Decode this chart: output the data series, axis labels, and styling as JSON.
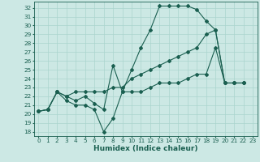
{
  "xlabel": "Humidex (Indice chaleur)",
  "bg_color": "#cce8e4",
  "line_color": "#1a5f50",
  "grid_color": "#aad4ce",
  "xlim": [
    -0.5,
    23.5
  ],
  "ylim": [
    17.5,
    32.7
  ],
  "xticks": [
    0,
    1,
    2,
    3,
    4,
    5,
    6,
    7,
    8,
    9,
    10,
    11,
    12,
    13,
    14,
    15,
    16,
    17,
    18,
    19,
    20,
    21,
    22,
    23
  ],
  "yticks": [
    18,
    19,
    20,
    21,
    22,
    23,
    24,
    25,
    26,
    27,
    28,
    29,
    30,
    31,
    32
  ],
  "series": [
    [
      20.3,
      20.5,
      22.5,
      21.5,
      21.0,
      21.0,
      20.5,
      18.0,
      19.5,
      22.5,
      25.0,
      27.5,
      29.5,
      32.2,
      32.2,
      32.2,
      32.2,
      31.8,
      30.5,
      29.5,
      23.5,
      23.5,
      23.5
    ],
    [
      20.3,
      20.5,
      22.5,
      22.0,
      21.5,
      22.0,
      21.2,
      20.5,
      25.5,
      22.5,
      22.5,
      22.5,
      23.0,
      23.5,
      23.5,
      23.5,
      24.0,
      24.5,
      24.5,
      27.5,
      23.5,
      23.5,
      23.5
    ],
    [
      20.3,
      20.5,
      22.5,
      22.0,
      22.5,
      22.5,
      22.5,
      22.5,
      23.0,
      23.0,
      24.0,
      24.5,
      25.0,
      25.5,
      26.0,
      26.5,
      27.0,
      27.5,
      29.0,
      29.5,
      23.5,
      23.5,
      23.5
    ]
  ],
  "x_series": [
    0,
    1,
    2,
    3,
    4,
    5,
    6,
    7,
    8,
    9,
    10,
    11,
    12,
    13,
    14,
    15,
    16,
    17,
    18,
    19,
    20,
    21,
    22
  ],
  "xlabel_fontsize": 6.5,
  "tick_fontsize": 5.2,
  "marker_size": 2.0,
  "linewidth": 0.8
}
